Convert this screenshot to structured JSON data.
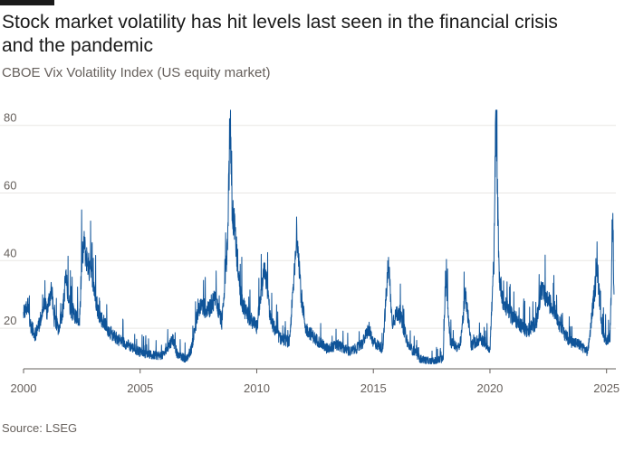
{
  "header": {
    "title": "Stock market volatility has hit levels last seen in the financial crisis and the pandemic",
    "subtitle": "CBOE Vix Volatility Index (US equity market)"
  },
  "footer": {
    "source": "Source: LSEG"
  },
  "colors": {
    "series": "#0f5499",
    "grid": "#e9e7e4",
    "text": "#66605c"
  },
  "chart_data": {
    "type": "line",
    "title": "Stock market volatility has hit levels last seen in the financial crisis and the pandemic",
    "subtitle": "CBOE Vix Volatility Index (US equity market)",
    "xlabel": "",
    "ylabel": "",
    "xlim": [
      2000,
      2025.4
    ],
    "ylim": [
      8,
      85
    ],
    "grid": true,
    "legend": "none",
    "x_ticks": [
      2000,
      2005,
      2010,
      2015,
      2020,
      2025
    ],
    "x_tick_labels": [
      "2000",
      "2005",
      "2010",
      "2015",
      "2020",
      "2025"
    ],
    "y_ticks": [
      20,
      40,
      60,
      80
    ],
    "y_tick_labels": [
      "20",
      "40",
      "60",
      "80"
    ],
    "series": [
      {
        "x": [
          2000.0,
          2000.2,
          2000.3,
          2000.5,
          2000.7,
          2000.9,
          2001.0,
          2001.2,
          2001.3,
          2001.5,
          2001.7,
          2001.8,
          2002.0,
          2002.2,
          2002.4,
          2002.5,
          2002.6,
          2002.8,
          2003.0,
          2003.2,
          2003.4,
          2003.6,
          2003.8,
          2004.0,
          2004.5,
          2005.0,
          2005.5,
          2006.0,
          2006.4,
          2006.6,
          2007.0,
          2007.2,
          2007.4,
          2007.6,
          2007.9,
          2008.2,
          2008.5,
          2008.75,
          2008.85,
          2008.95,
          2009.1,
          2009.3,
          2009.5,
          2009.8,
          2010.0,
          2010.35,
          2010.6,
          2011.0,
          2011.4,
          2011.6,
          2011.75,
          2011.9,
          2012.1,
          2012.5,
          2013.0,
          2013.5,
          2014.0,
          2014.5,
          2014.8,
          2015.0,
          2015.4,
          2015.65,
          2015.8,
          2016.1,
          2016.5,
          2017.0,
          2017.5,
          2018.0,
          2018.1,
          2018.3,
          2018.7,
          2018.95,
          2019.2,
          2019.6,
          2020.0,
          2020.17,
          2020.25,
          2020.4,
          2020.6,
          2020.9,
          2021.2,
          2021.6,
          2022.0,
          2022.2,
          2022.5,
          2022.8,
          2023.0,
          2023.2,
          2023.5,
          2023.9,
          2024.2,
          2024.6,
          2024.8,
          2025.0,
          2025.15,
          2025.27,
          2025.32
        ],
        "y": [
          24,
          27,
          21,
          18,
          22,
          27,
          25,
          32,
          23,
          20,
          26,
          35,
          26,
          24,
          22,
          40,
          44,
          38,
          33,
          25,
          22,
          20,
          18,
          17,
          15,
          13,
          12,
          12,
          17,
          12,
          11,
          14,
          22,
          27,
          25,
          29,
          22,
          45,
          80,
          55,
          46,
          30,
          25,
          22,
          20,
          38,
          22,
          17,
          16,
          35,
          48,
          30,
          20,
          17,
          14,
          15,
          13,
          15,
          20,
          16,
          14,
          40,
          22,
          25,
          15,
          11,
          10,
          11,
          37,
          16,
          14,
          30,
          15,
          17,
          14,
          40,
          82,
          35,
          27,
          24,
          22,
          19,
          22,
          31,
          28,
          25,
          21,
          18,
          16,
          15,
          13,
          38,
          20,
          16,
          18,
          52,
          30
        ]
      }
    ]
  }
}
